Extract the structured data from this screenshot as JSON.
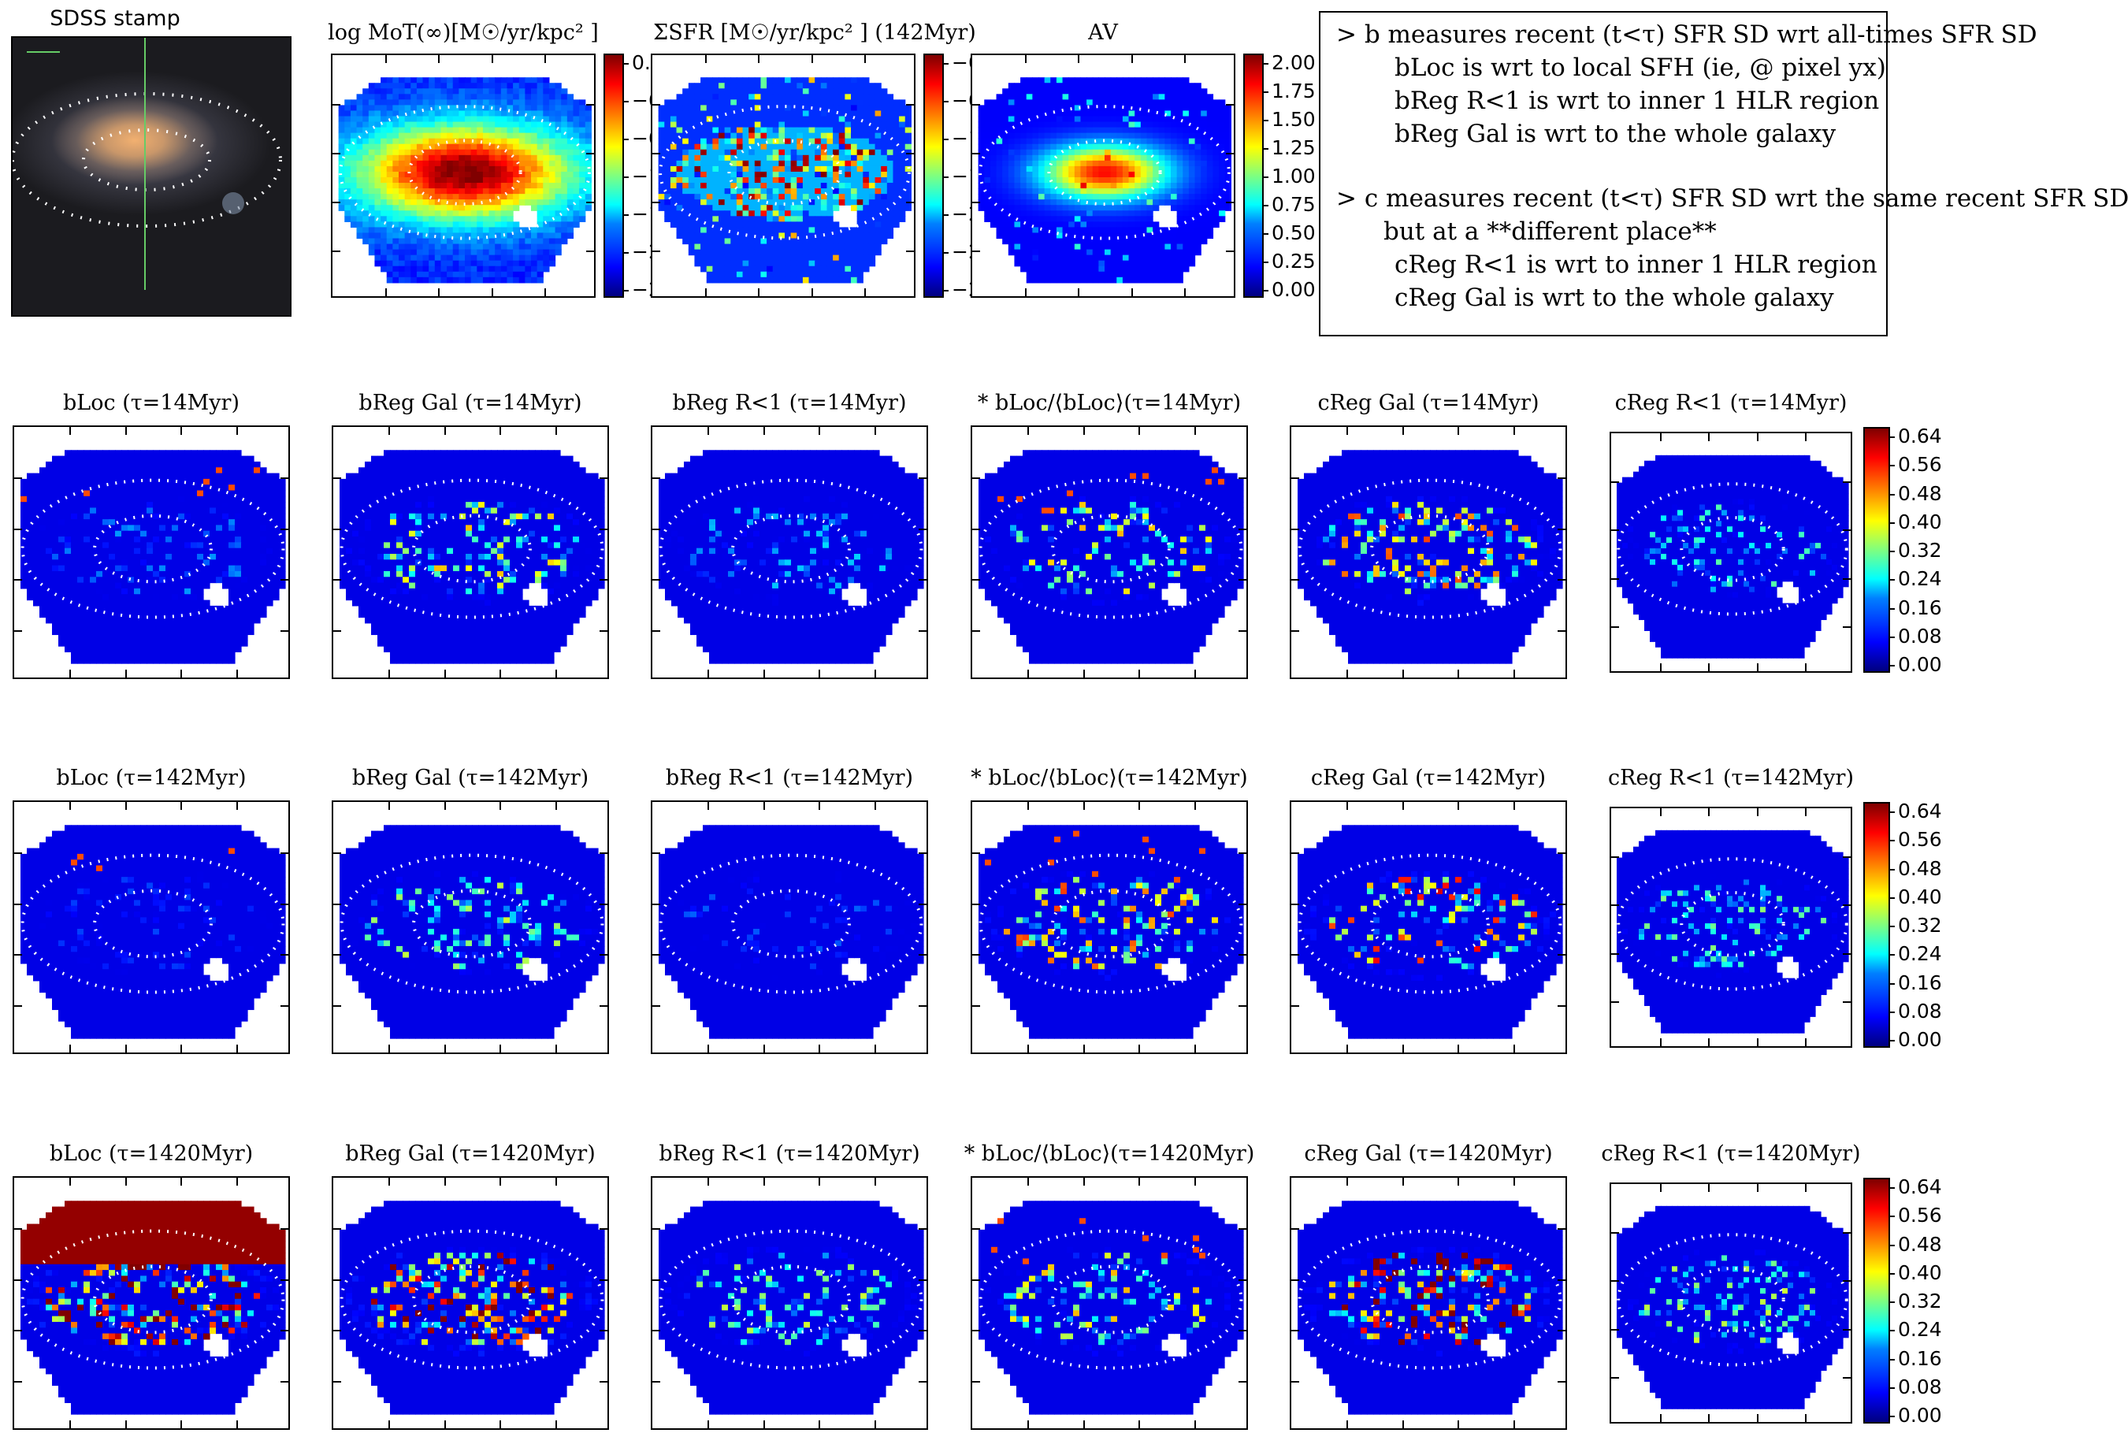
{
  "stamp": {
    "title": "SDSS stamp"
  },
  "top_maps": [
    {
      "title": "log MoT(∞)[M☉/yr/kpc² ]",
      "colorbar": [
        "0.0",
        "−0",
        "−0",
        "−1",
        "−1",
        "−2",
        "−2"
      ]
    },
    {
      "title": "ΣSFR [M☉/yr/kpc² ] (142Myr)",
      "colorbar": [
        "−0",
        "−0",
        "−1",
        "−1",
        "−2",
        "−2",
        "−2"
      ]
    },
    {
      "title": "AV",
      "colorbar": [
        "2.00",
        "1.75",
        "1.50",
        "1.25",
        "1.00",
        "0.75",
        "0.50",
        "0.25",
        "0.00"
      ]
    }
  ],
  "notes": [
    "> b measures recent (t<τ) SFR SD wrt all-times SFR SD",
    "bLoc is wrt to local SFH (ie, @ pixel yx)",
    "bReg R<1 is wrt to inner 1 HLR region",
    "bReg Gal is wrt to the whole galaxy",
    "> c measures recent (t<τ) SFR SD wrt the same recent SFR SD",
    "but at a **different place**",
    "cReg R<1 is wrt to inner 1 HLR region",
    "cReg Gal is wrt to the whole galaxy"
  ],
  "chart_data": {
    "type": "heatmap",
    "colorscale": "jet",
    "colorbar_ticks": [
      "0.64",
      "0.56",
      "0.48",
      "0.40",
      "0.32",
      "0.24",
      "0.16",
      "0.08",
      "0.00"
    ],
    "rows": [
      {
        "tau": "τ=14Myr",
        "panels": [
          "bLoc (τ=14Myr)",
          "bReg Gal (τ=14Myr)",
          "bReg R<1 (τ=14Myr)",
          "* bLoc/⟨bLoc⟩(τ=14Myr)",
          "cReg Gal (τ=14Myr)",
          "cReg R<1 (τ=14Myr)"
        ],
        "intensity": [
          0.15,
          0.5,
          0.2,
          0.5,
          0.6,
          0.3
        ]
      },
      {
        "tau": "τ=142Myr",
        "panels": [
          "bLoc (τ=142Myr)",
          "bReg Gal (τ=142Myr)",
          "bReg R<1 (τ=142Myr)",
          "* bLoc/⟨bLoc⟩(τ=142Myr)",
          "cReg Gal (τ=142Myr)",
          "cReg R<1 (τ=142Myr)"
        ],
        "intensity": [
          0.08,
          0.4,
          0.1,
          0.6,
          0.7,
          0.35
        ]
      },
      {
        "tau": "τ=1420Myr",
        "panels": [
          "bLoc (τ=1420Myr)",
          "bReg Gal (τ=1420Myr)",
          "bReg R<1 (τ=1420Myr)",
          "* bLoc/⟨bLoc⟩(τ=1420Myr)",
          "cReg Gal (τ=1420Myr)",
          "cReg R<1 (τ=1420Myr)"
        ],
        "intensity": [
          0.9,
          0.9,
          0.4,
          0.5,
          0.9,
          0.4
        ]
      }
    ]
  }
}
